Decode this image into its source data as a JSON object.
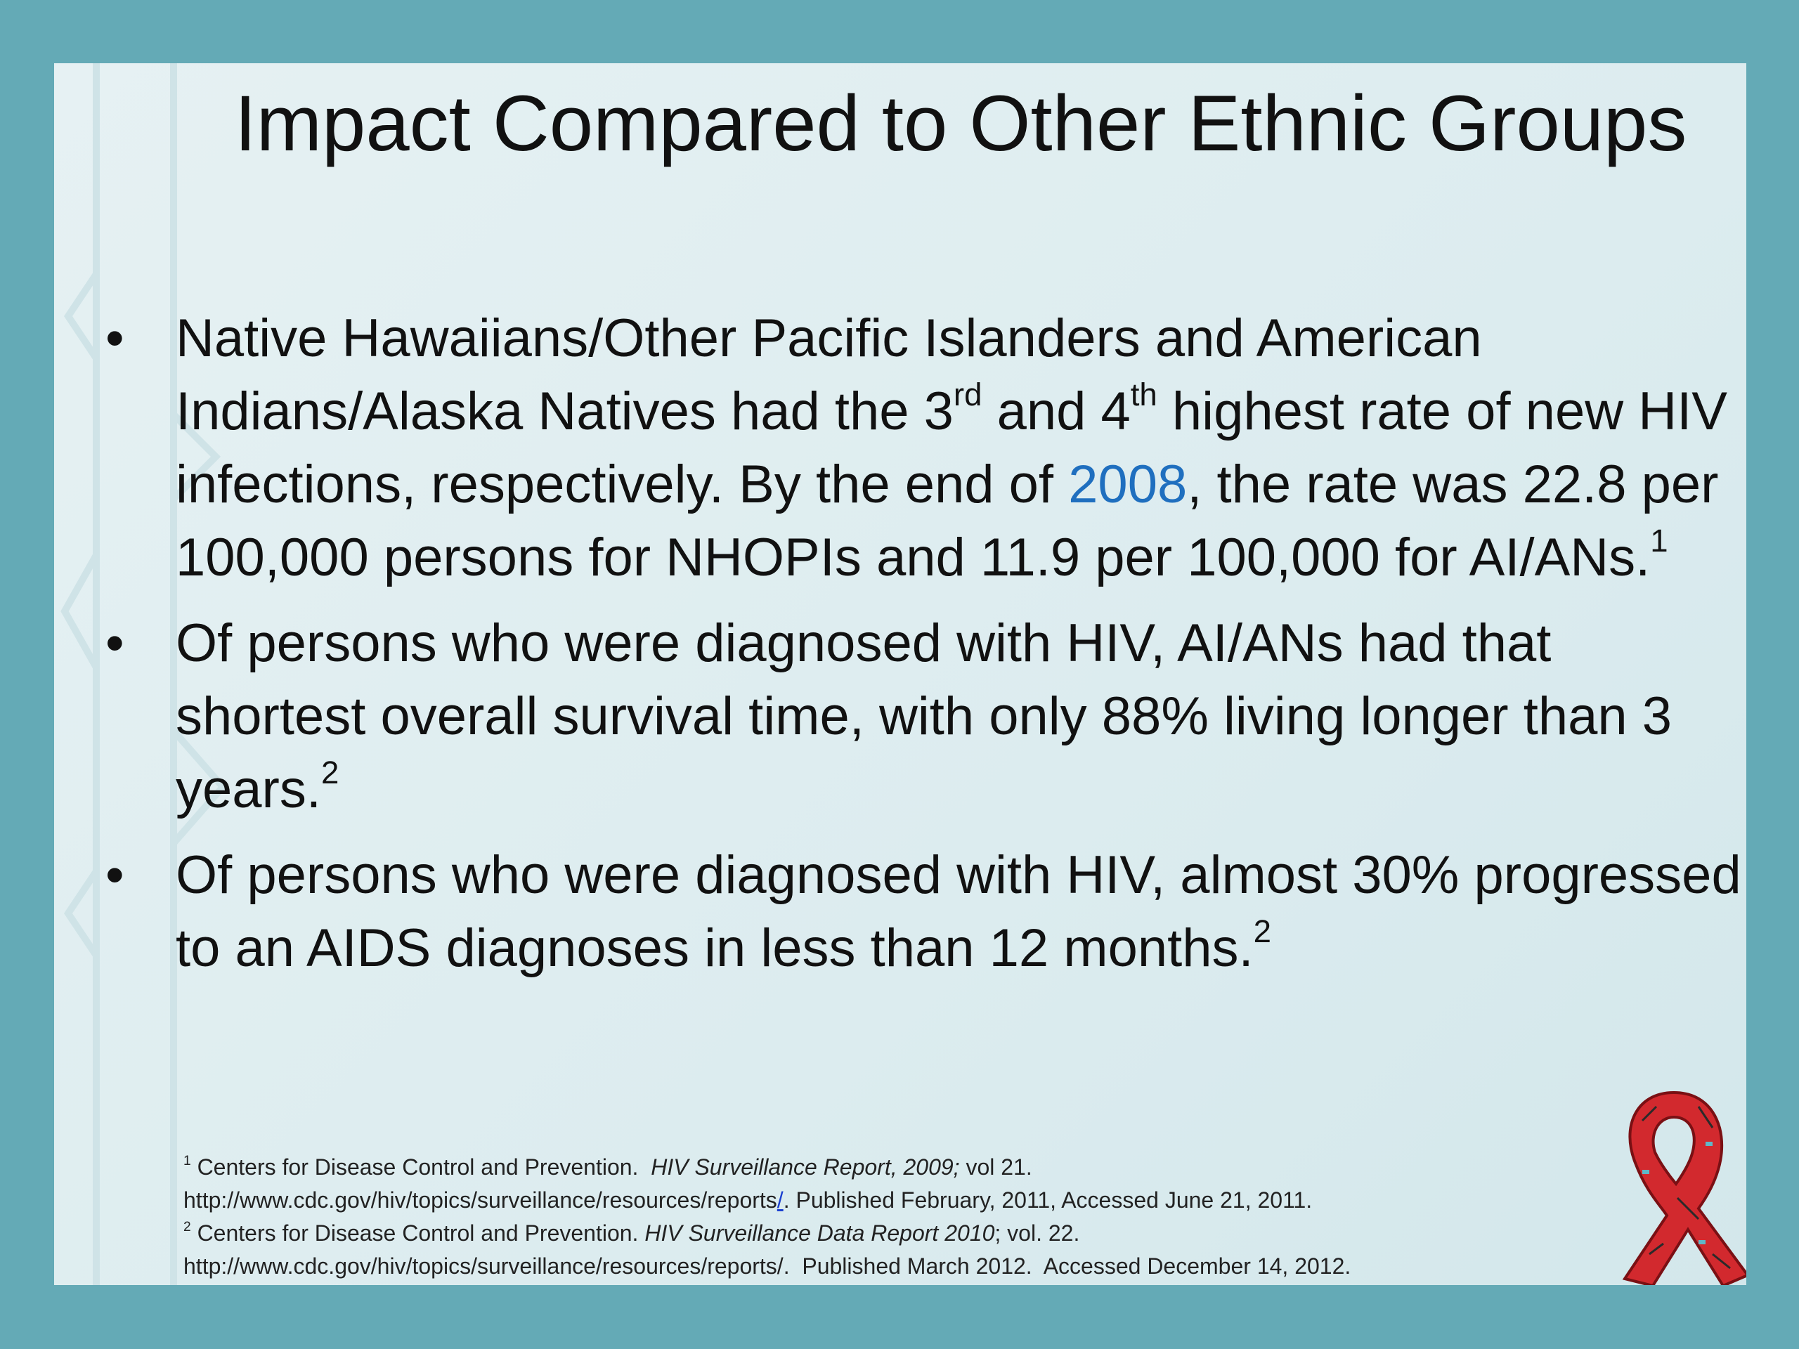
{
  "title": "Impact Compared to Other Ethnic Groups",
  "bullets": [
    [
      {
        "text": "Native Hawaiians/Other Pacific Islanders and American Indians/Alaska Natives had the 3"
      },
      {
        "sup": "rd"
      },
      {
        "text": " and 4"
      },
      {
        "sup": "th"
      },
      {
        "text": " highest rate of new HIV infections, respectively. By the end of "
      },
      {
        "link": "2008"
      },
      {
        "text": ", the rate was 22.8 per 100,000 persons for NHOPIs and 11.9 per 100,000 for AI/ANs."
      },
      {
        "sup": "1"
      }
    ],
    [
      {
        "text": "Of persons who were diagnosed with HIV, AI/ANs had that shortest overall survival time, with only 88% living longer than 3 years."
      },
      {
        "sup": "2"
      }
    ],
    [
      {
        "text": "Of persons who were diagnosed with HIV, almost 30% progressed to an AIDS diagnoses in less than 12 months."
      },
      {
        "sup": "2"
      }
    ]
  ],
  "footnotes": [
    [
      {
        "sup": "1"
      },
      {
        "text": " Centers for Disease Control and Prevention.  "
      },
      {
        "em": "HIV Surveillance Report, 2009;"
      },
      {
        "text": " vol 21."
      }
    ],
    [
      {
        "text": "http://www.cdc.gov/hiv/topics/surveillance/resources/reports"
      },
      {
        "link": "/"
      },
      {
        "text": ". Published February, 2011, Accessed June 21, 2011."
      }
    ],
    [
      {
        "sup": "2"
      },
      {
        "text": " Centers for Disease Control and Prevention. "
      },
      {
        "em": "HIV Surveillance Data Report 2010"
      },
      {
        "text": "; vol. 22."
      }
    ],
    [
      {
        "text": "http://www.cdc.gov/hiv/topics/surveillance/resources/reports/.  Published March 2012.  Accessed December 14, 2012."
      }
    ]
  ]
}
